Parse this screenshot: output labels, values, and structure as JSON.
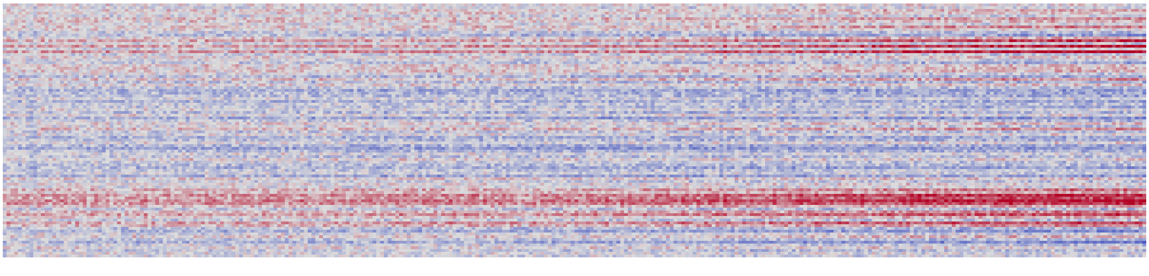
{
  "chart_data": {
    "type": "heatmap",
    "title": "",
    "xlabel": "",
    "ylabel": "",
    "colormap": "coolwarm",
    "colors": {
      "low": "#3b4cc0",
      "mid": "#dddddd",
      "high": "#b40426",
      "background": "#ffffff"
    },
    "value_range": [
      -1,
      1
    ],
    "n_rows": 92,
    "n_cols": 300,
    "axes_visible": false,
    "colorbar": false,
    "row_bias": [
      0.02,
      -0.08,
      0.1,
      0.05,
      -0.1,
      0.15,
      0.08,
      -0.05,
      0.12,
      0.02,
      -0.2,
      -0.3,
      0.05,
      0.3,
      -0.1,
      0.35,
      -0.05,
      0.4,
      -0.15,
      0.05,
      -0.1,
      -0.2,
      0.1,
      0.05,
      0.15,
      -0.05,
      -0.3,
      0.15,
      -0.25,
      0.05,
      -0.2,
      -0.4,
      -0.3,
      -0.25,
      -0.1,
      -0.35,
      -0.15,
      -0.2,
      -0.05,
      -0.3,
      0.0,
      -0.4,
      -0.15,
      0.05,
      -0.1,
      0.15,
      -0.2,
      -0.05,
      -0.35,
      -0.25,
      -0.05,
      -0.35,
      -0.5,
      -0.3,
      -0.05,
      -0.25,
      0.05,
      -0.15,
      -0.25,
      -0.35,
      -0.2,
      -0.1,
      -0.4,
      0.1,
      -0.15,
      0.05,
      -0.05,
      0.25,
      0.15,
      0.45,
      0.35,
      0.5,
      0.4,
      0.15,
      -0.2,
      0.2,
      0.4,
      0.1,
      -0.15,
      0.35,
      0.2,
      -0.25,
      -0.35,
      -0.1,
      0.1,
      -0.2,
      -0.35,
      -0.1,
      0.05,
      -0.2,
      -0.05,
      -0.1
    ],
    "row_trend": [
      0.0,
      0.0,
      0.1,
      0.1,
      0.0,
      0.2,
      0.1,
      0.0,
      0.3,
      0.0,
      0.0,
      -0.1,
      0.2,
      0.4,
      0.0,
      0.5,
      0.1,
      0.55,
      0.0,
      0.1,
      0.0,
      -0.1,
      0.0,
      0.1,
      0.0,
      -0.1,
      0.0,
      0.2,
      0.0,
      0.1,
      0.0,
      0.1,
      0.0,
      -0.1,
      0.0,
      0.1,
      0.0,
      -0.1,
      0.0,
      0.1,
      0.0,
      0.0,
      -0.1,
      0.1,
      -0.1,
      0.2,
      0.0,
      0.1,
      0.1,
      0.0,
      0.1,
      0.1,
      0.2,
      0.1,
      0.0,
      0.1,
      0.0,
      0.0,
      0.1,
      0.0,
      0.1,
      0.0,
      0.1,
      0.0,
      0.0,
      0.0,
      0.0,
      0.2,
      0.1,
      0.3,
      0.3,
      0.4,
      0.3,
      0.1,
      0.0,
      0.2,
      0.2,
      0.1,
      0.0,
      0.3,
      0.1,
      0.0,
      -0.1,
      0.0,
      0.1,
      0.0,
      -0.2,
      -0.1,
      0.0,
      0.0,
      0.0,
      0.0
    ],
    "noise_amplitude": 0.35,
    "seed": 7
  }
}
